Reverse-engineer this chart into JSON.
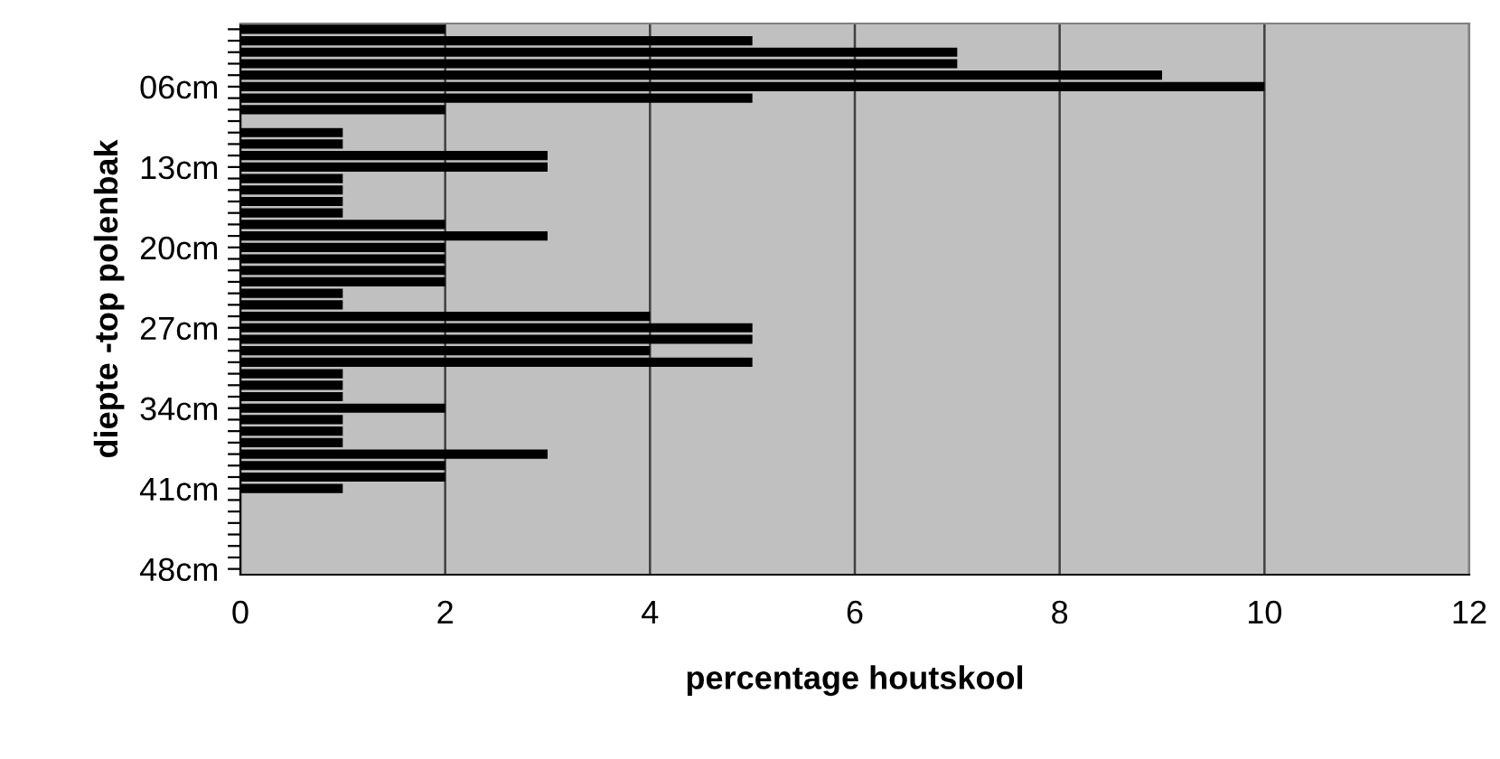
{
  "chart_data": {
    "type": "bar",
    "orientation": "horizontal",
    "xlabel": "percentage houtskool",
    "ylabel": "diepte -top polenbak",
    "categories": [
      null,
      null,
      null,
      null,
      null,
      "06cm",
      null,
      null,
      null,
      null,
      null,
      null,
      "13cm",
      null,
      null,
      null,
      null,
      null,
      null,
      "20cm",
      null,
      null,
      null,
      null,
      null,
      null,
      "27cm",
      null,
      null,
      null,
      null,
      null,
      null,
      "34cm",
      null,
      null,
      null,
      null,
      null,
      null,
      "41cm",
      null,
      null,
      null,
      null,
      null,
      null,
      "48cm"
    ],
    "values": [
      2,
      5,
      7,
      7,
      9,
      10,
      5,
      2,
      0,
      1,
      1,
      3,
      3,
      1,
      1,
      1,
      1,
      2,
      3,
      2,
      2,
      2,
      2,
      1,
      1,
      4,
      5,
      5,
      4,
      5,
      1,
      1,
      1,
      2,
      1,
      1,
      1,
      3,
      2,
      2,
      1,
      0,
      0,
      0,
      0,
      0,
      0,
      0
    ],
    "color": "#000000",
    "xlim": [
      0,
      12
    ],
    "xticks": [
      0,
      2,
      4,
      6,
      8,
      10,
      12
    ],
    "grid": "x",
    "legend": false
  }
}
